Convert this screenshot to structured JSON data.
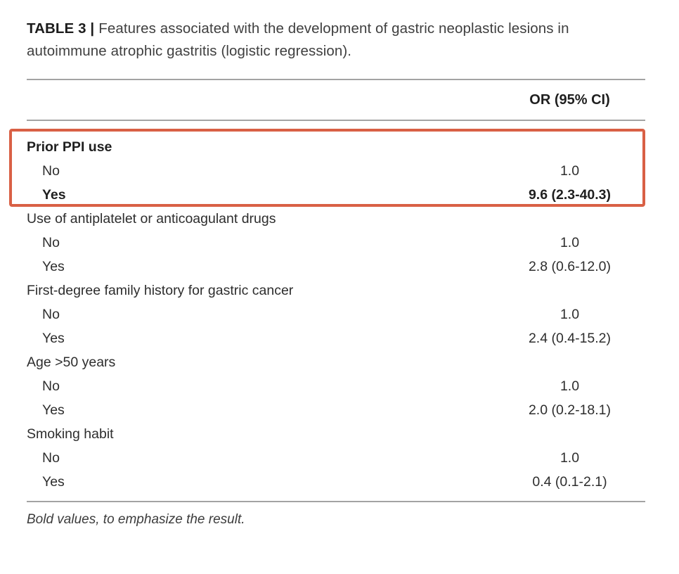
{
  "caption": {
    "prefix": "TABLE 3 |",
    "text": "Features associated with the development of gastric neoplastic lesions in autoimmune atrophic gastritis (logistic regression)."
  },
  "header": {
    "value_col": "OR (95% CI)"
  },
  "table": {
    "highlight_color": "#d96045",
    "groups": [
      {
        "label": "Prior PPI use",
        "bold": true,
        "highlighted": true,
        "rows": [
          {
            "label": "No",
            "value": "1.0",
            "bold": false
          },
          {
            "label": "Yes",
            "value": "9.6 (2.3-40.3)",
            "bold": true
          }
        ]
      },
      {
        "label": "Use of antiplatelet or anticoagulant drugs",
        "bold": false,
        "highlighted": false,
        "rows": [
          {
            "label": "No",
            "value": "1.0",
            "bold": false
          },
          {
            "label": "Yes",
            "value": "2.8 (0.6-12.0)",
            "bold": false
          }
        ]
      },
      {
        "label": "First-degree family history for gastric cancer",
        "bold": false,
        "highlighted": false,
        "rows": [
          {
            "label": "No",
            "value": "1.0",
            "bold": false
          },
          {
            "label": "Yes",
            "value": "2.4 (0.4-15.2)",
            "bold": false
          }
        ]
      },
      {
        "label": "Age >50 years",
        "bold": false,
        "highlighted": false,
        "rows": [
          {
            "label": "No",
            "value": "1.0",
            "bold": false
          },
          {
            "label": "Yes",
            "value": "2.0 (0.2-18.1)",
            "bold": false
          }
        ]
      },
      {
        "label": "Smoking habit",
        "bold": false,
        "highlighted": false,
        "rows": [
          {
            "label": "No",
            "value": "1.0",
            "bold": false
          },
          {
            "label": "Yes",
            "value": "0.4 (0.1-2.1)",
            "bold": false
          }
        ]
      }
    ]
  },
  "footnote": "Bold values, to emphasize the result."
}
